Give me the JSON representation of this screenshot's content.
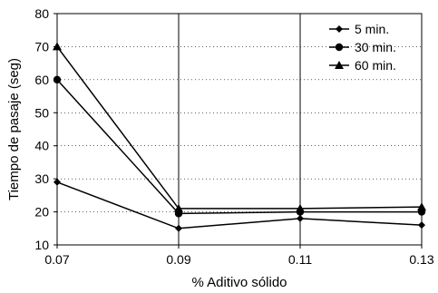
{
  "chart_data": {
    "type": "line",
    "title": "",
    "xlabel": "% Aditivo sólido",
    "ylabel": "Tiempo de pasaje (seg)",
    "x": [
      0.07,
      0.09,
      0.11,
      0.13
    ],
    "x_tick_labels": [
      "0.07",
      "0.09",
      "0.11",
      "0.13"
    ],
    "ylim": [
      10,
      80
    ],
    "y_ticks": [
      10,
      20,
      30,
      40,
      50,
      60,
      70,
      80
    ],
    "grid": {
      "vertical": true,
      "horizontal": "dotted"
    },
    "legend_position": "top-right",
    "series": [
      {
        "name": "5 min.",
        "marker": "diamond",
        "values": [
          29,
          15,
          18,
          16
        ]
      },
      {
        "name": "30 min.",
        "marker": "circle",
        "values": [
          60,
          19.5,
          20,
          20
        ]
      },
      {
        "name": "60 min.",
        "marker": "triangle",
        "values": [
          70,
          21,
          21,
          21.5
        ]
      }
    ],
    "colors": {
      "line": "#000000",
      "grid": "#000000",
      "background": "#ffffff"
    }
  }
}
